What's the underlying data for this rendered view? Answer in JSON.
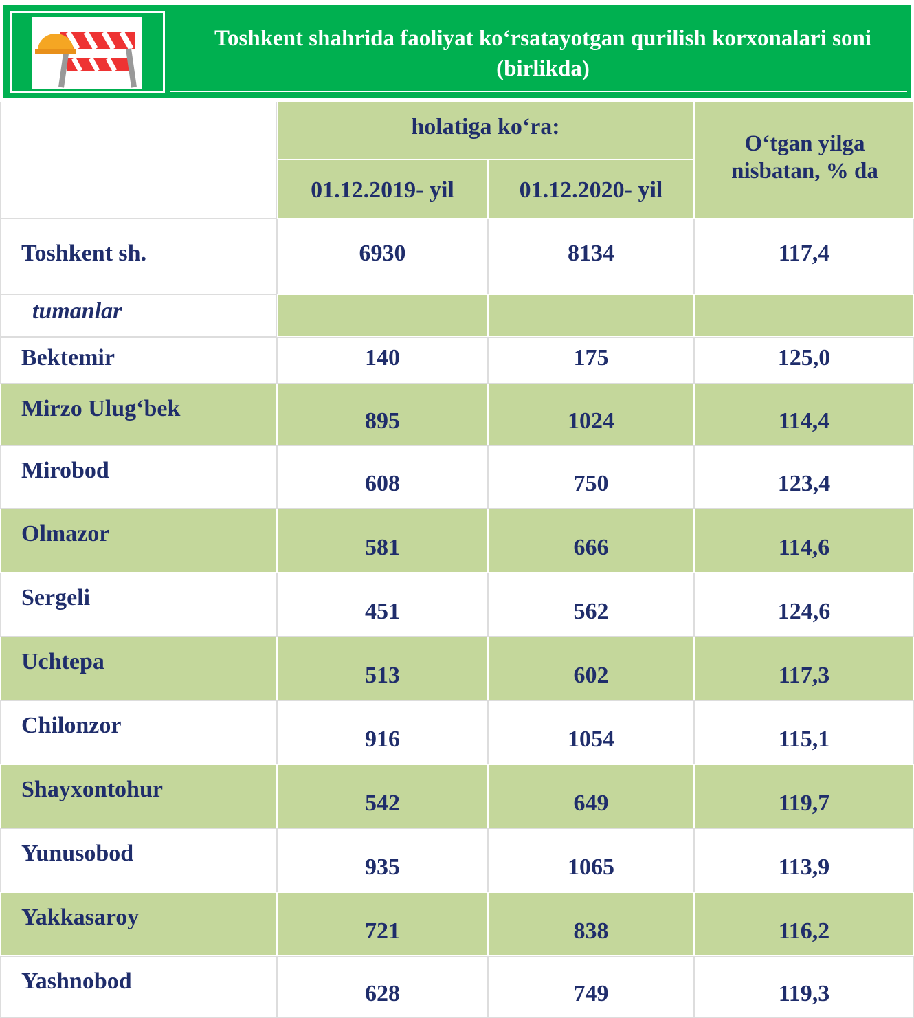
{
  "header": {
    "title": "Toshkent shahrida faoliyat ko‘rsatayotgan qurilish korxonalari soni (birlikda)"
  },
  "table": {
    "group_header": "holatiga ko‘ra:",
    "columns": [
      "01.12.2019- yil",
      "01.12.2020- yil"
    ],
    "change_header": "O‘tgan yilga nisbatan, % da",
    "total": [
      "Toshkent sh.",
      "6930",
      "8134",
      "117,4"
    ],
    "section": "tumanlar",
    "rows": [
      [
        "Bektemir",
        "140",
        "175",
        "125,0"
      ],
      [
        "Mirzo Ulug‘bek",
        "895",
        "1024",
        "114,4"
      ],
      [
        "Mirobod",
        "608",
        "750",
        "123,4"
      ],
      [
        "Olmazor",
        "581",
        "666",
        "114,6"
      ],
      [
        "Sergeli",
        "451",
        "562",
        "124,6"
      ],
      [
        "Uchtepa",
        "513",
        "602",
        "117,3"
      ],
      [
        "Chilonzor",
        "916",
        "1054",
        "115,1"
      ],
      [
        "Shayxontohur",
        "542",
        "649",
        "119,7"
      ],
      [
        "Yunusobod",
        "935",
        "1065",
        "113,9"
      ],
      [
        "Yakkasaroy",
        "721",
        "838",
        "116,2"
      ],
      [
        "Yashnobod",
        "628",
        "749",
        "119,3"
      ]
    ]
  }
}
